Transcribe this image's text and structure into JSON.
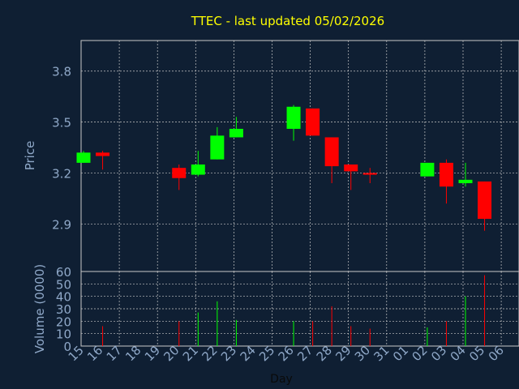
{
  "chart_data": {
    "type": "candlestick",
    "title": "TTEC - last updated 05/02/2026",
    "price_panel": {
      "ylabel": "Price",
      "ylim": [
        2.62,
        3.98
      ],
      "yticks": [
        2.9,
        3.2,
        3.5,
        3.8
      ],
      "ytick_labels": [
        "2.9",
        "3.2",
        "3.5",
        "3.8"
      ]
    },
    "volume_panel": {
      "ylabel": "Volume (0000)",
      "ylim": [
        0,
        60
      ],
      "yticks": [
        0,
        10,
        20,
        30,
        40,
        50,
        60
      ],
      "ytick_labels": [
        "0",
        "10",
        "20",
        "30",
        "40",
        "50",
        "60"
      ]
    },
    "xlabel": "Day",
    "x_labels": [
      "15",
      "16",
      "17",
      "18",
      "19",
      "20",
      "21",
      "22",
      "23",
      "24",
      "25",
      "26",
      "27",
      "28",
      "29",
      "30",
      "31",
      "01",
      "02",
      "03",
      "04",
      "05",
      "06"
    ],
    "grid": true,
    "colors": {
      "background": "#0f1f33",
      "up": "#00ff00",
      "down": "#ff0000",
      "title": "#ffff00",
      "axis_text": "#8fa8c8",
      "grid": "#c8c8c8"
    },
    "candles": [
      {
        "day": "15",
        "open": 3.26,
        "high": 3.33,
        "low": 3.26,
        "close": 3.32,
        "volume": 0
      },
      {
        "day": "16",
        "open": 3.32,
        "high": 3.33,
        "low": 3.22,
        "close": 3.3,
        "volume": 16
      },
      {
        "day": "20",
        "open": 3.23,
        "high": 3.25,
        "low": 3.1,
        "close": 3.17,
        "volume": 20
      },
      {
        "day": "21",
        "open": 3.19,
        "high": 3.33,
        "low": 3.18,
        "close": 3.25,
        "volume": 27
      },
      {
        "day": "22",
        "open": 3.28,
        "high": 3.47,
        "low": 3.28,
        "close": 3.42,
        "volume": 36
      },
      {
        "day": "23",
        "open": 3.41,
        "high": 3.53,
        "low": 3.41,
        "close": 3.46,
        "volume": 21
      },
      {
        "day": "26",
        "open": 3.46,
        "high": 3.6,
        "low": 3.39,
        "close": 3.59,
        "volume": 20
      },
      {
        "day": "27",
        "open": 3.58,
        "high": 3.58,
        "low": 3.42,
        "close": 3.42,
        "volume": 20
      },
      {
        "day": "28",
        "open": 3.41,
        "high": 3.41,
        "low": 3.14,
        "close": 3.24,
        "volume": 32
      },
      {
        "day": "29",
        "open": 3.25,
        "high": 3.25,
        "low": 3.1,
        "close": 3.21,
        "volume": 16
      },
      {
        "day": "30",
        "open": 3.2,
        "high": 3.23,
        "low": 3.14,
        "close": 3.19,
        "volume": 14
      },
      {
        "day": "02",
        "open": 3.18,
        "high": 3.26,
        "low": 3.18,
        "close": 3.26,
        "volume": 15
      },
      {
        "day": "03",
        "open": 3.26,
        "high": 3.28,
        "low": 3.02,
        "close": 3.12,
        "volume": 20
      },
      {
        "day": "04",
        "open": 3.14,
        "high": 3.26,
        "low": 3.12,
        "close": 3.16,
        "volume": 40
      },
      {
        "day": "05",
        "open": 3.15,
        "high": 3.15,
        "low": 2.86,
        "close": 2.93,
        "volume": 57
      }
    ]
  }
}
